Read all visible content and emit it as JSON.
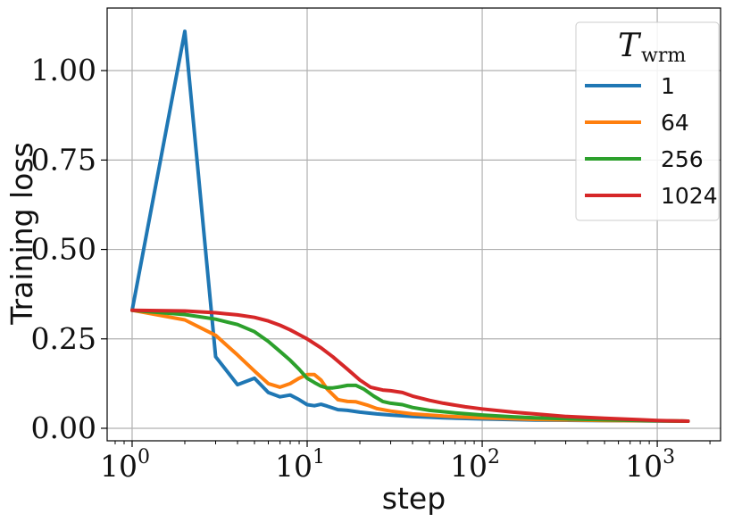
{
  "chart_data": {
    "type": "line",
    "xlabel": "step",
    "ylabel": "Training loss",
    "xscale": "log",
    "xlim": [
      0.72,
      2300
    ],
    "ylim": [
      -0.035,
      1.175
    ],
    "x_ticks": [
      {
        "value": 1,
        "base": "10",
        "exp": "0"
      },
      {
        "value": 10,
        "base": "10",
        "exp": "1"
      },
      {
        "value": 100,
        "base": "10",
        "exp": "2"
      },
      {
        "value": 1000,
        "base": "10",
        "exp": "3"
      }
    ],
    "y_ticks": [
      {
        "value": 0.0,
        "label": "0.00"
      },
      {
        "value": 0.25,
        "label": "0.25"
      },
      {
        "value": 0.5,
        "label": "0.50"
      },
      {
        "value": 0.75,
        "label": "0.75"
      },
      {
        "value": 1.0,
        "label": "1.00"
      }
    ],
    "grid": true,
    "legend": {
      "position": "top-right",
      "title_main": "T",
      "title_sub": "wrm"
    },
    "series": [
      {
        "name": "1",
        "color": "#1f77b4",
        "points": [
          [
            1,
            0.33
          ],
          [
            2,
            1.11
          ],
          [
            3,
            0.2
          ],
          [
            4,
            0.122
          ],
          [
            5,
            0.14
          ],
          [
            6,
            0.1
          ],
          [
            7,
            0.088
          ],
          [
            8,
            0.093
          ],
          [
            9,
            0.08
          ],
          [
            10,
            0.066
          ],
          [
            11,
            0.063
          ],
          [
            12,
            0.067
          ],
          [
            13,
            0.062
          ],
          [
            15,
            0.052
          ],
          [
            17,
            0.05
          ],
          [
            20,
            0.045
          ],
          [
            25,
            0.04
          ],
          [
            30,
            0.037
          ],
          [
            40,
            0.033
          ],
          [
            60,
            0.029
          ],
          [
            100,
            0.026
          ],
          [
            200,
            0.023
          ],
          [
            400,
            0.022
          ],
          [
            800,
            0.021
          ],
          [
            1500,
            0.02
          ]
        ]
      },
      {
        "name": "64",
        "color": "#ff7f0e",
        "points": [
          [
            1,
            0.33
          ],
          [
            2,
            0.303
          ],
          [
            3,
            0.26
          ],
          [
            4,
            0.205
          ],
          [
            5,
            0.16
          ],
          [
            6,
            0.125
          ],
          [
            7,
            0.115
          ],
          [
            8,
            0.125
          ],
          [
            9,
            0.14
          ],
          [
            10,
            0.15
          ],
          [
            11,
            0.15
          ],
          [
            12,
            0.135
          ],
          [
            13,
            0.11
          ],
          [
            15,
            0.08
          ],
          [
            17,
            0.075
          ],
          [
            19,
            0.074
          ],
          [
            22,
            0.065
          ],
          [
            25,
            0.055
          ],
          [
            30,
            0.048
          ],
          [
            40,
            0.04
          ],
          [
            60,
            0.034
          ],
          [
            100,
            0.029
          ],
          [
            200,
            0.025
          ],
          [
            500,
            0.022
          ],
          [
            1000,
            0.021
          ],
          [
            1500,
            0.02
          ]
        ]
      },
      {
        "name": "256",
        "color": "#2ca02c",
        "points": [
          [
            1,
            0.33
          ],
          [
            2,
            0.318
          ],
          [
            3,
            0.305
          ],
          [
            4,
            0.29
          ],
          [
            5,
            0.27
          ],
          [
            6,
            0.243
          ],
          [
            7,
            0.215
          ],
          [
            8,
            0.19
          ],
          [
            9,
            0.165
          ],
          [
            10,
            0.14
          ],
          [
            11,
            0.128
          ],
          [
            12,
            0.118
          ],
          [
            13,
            0.113
          ],
          [
            14,
            0.113
          ],
          [
            15,
            0.115
          ],
          [
            17,
            0.12
          ],
          [
            19,
            0.12
          ],
          [
            21,
            0.11
          ],
          [
            24,
            0.09
          ],
          [
            27,
            0.075
          ],
          [
            30,
            0.07
          ],
          [
            35,
            0.066
          ],
          [
            40,
            0.058
          ],
          [
            50,
            0.05
          ],
          [
            70,
            0.043
          ],
          [
            100,
            0.037
          ],
          [
            150,
            0.032
          ],
          [
            200,
            0.029
          ],
          [
            400,
            0.025
          ],
          [
            800,
            0.022
          ],
          [
            1500,
            0.02
          ]
        ]
      },
      {
        "name": "1024",
        "color": "#d62728",
        "points": [
          [
            1,
            0.33
          ],
          [
            2,
            0.328
          ],
          [
            3,
            0.323
          ],
          [
            4,
            0.317
          ],
          [
            5,
            0.31
          ],
          [
            6,
            0.3
          ],
          [
            7,
            0.288
          ],
          [
            8,
            0.275
          ],
          [
            9,
            0.262
          ],
          [
            10,
            0.25
          ],
          [
            12,
            0.225
          ],
          [
            14,
            0.2
          ],
          [
            17,
            0.165
          ],
          [
            20,
            0.135
          ],
          [
            23,
            0.115
          ],
          [
            27,
            0.107
          ],
          [
            30,
            0.105
          ],
          [
            35,
            0.1
          ],
          [
            40,
            0.09
          ],
          [
            50,
            0.078
          ],
          [
            60,
            0.07
          ],
          [
            80,
            0.06
          ],
          [
            100,
            0.054
          ],
          [
            150,
            0.045
          ],
          [
            200,
            0.04
          ],
          [
            300,
            0.033
          ],
          [
            500,
            0.028
          ],
          [
            800,
            0.024
          ],
          [
            1000,
            0.022
          ],
          [
            1500,
            0.02
          ]
        ]
      }
    ]
  }
}
